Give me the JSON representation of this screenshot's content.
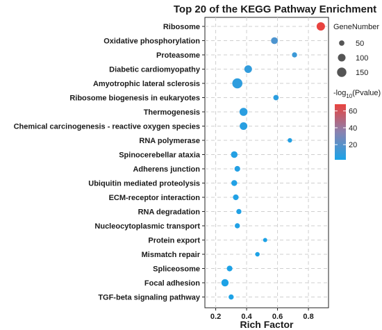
{
  "chart_data": {
    "type": "scatter",
    "title": "Top 20 of the KEGG Pathway Enrichment",
    "xlabel": "Rich Factor",
    "ylabel": "",
    "xlim": [
      0.13,
      0.93
    ],
    "xticks": [
      "0.2",
      "0.4",
      "0.6",
      "0.8"
    ],
    "xtick_values": [
      0.2,
      0.4,
      0.6,
      0.8
    ],
    "grid": true,
    "legend_placement": "right",
    "size_legend": {
      "title": "GeneNumber",
      "values": [
        50,
        100,
        150
      ],
      "labels": [
        "50",
        "100",
        "150"
      ]
    },
    "color_legend": {
      "title_prefix": "-log",
      "title_sub": "10",
      "title_suffix": "(Pvalue)",
      "ticks": [
        20,
        40,
        60
      ],
      "tick_labels": [
        "20",
        "40",
        "60"
      ],
      "range": [
        2,
        68
      ],
      "low_color": "#1aa3e8",
      "mid_color": "#8a82b0",
      "high_color": "#e8433f"
    },
    "categories": [
      "Ribosome",
      "Oxidative phosphorylation",
      "Proteasome",
      "Diabetic cardiomyopathy",
      "Amyotrophic lateral sclerosis",
      "Ribosome biogenesis in eukaryotes",
      "Thermogenesis",
      "Chemical carcinogenesis - reactive oxygen species",
      "RNA polymerase",
      "Spinocerebellar ataxia",
      "Adherens junction",
      "Ubiquitin mediated proteolysis",
      "ECM-receptor interaction",
      "RNA degradation",
      "Nucleocytoplasmic transport",
      "Protein export",
      "Mismatch repair",
      "Spliceosome",
      "Focal adhesion",
      "TGF-beta signaling pathway"
    ],
    "x": [
      0.88,
      0.58,
      0.71,
      0.41,
      0.34,
      0.59,
      0.38,
      0.38,
      0.68,
      0.32,
      0.34,
      0.32,
      0.33,
      0.35,
      0.34,
      0.52,
      0.47,
      0.29,
      0.26,
      0.3
    ],
    "gene_number": [
      120,
      80,
      45,
      100,
      175,
      50,
      110,
      100,
      35,
      75,
      55,
      60,
      55,
      45,
      45,
      30,
      35,
      55,
      90,
      45
    ],
    "neg_log10_pvalue": [
      68,
      17,
      12,
      9,
      8,
      7,
      7,
      6,
      5,
      5,
      5,
      4,
      4,
      4,
      4,
      3,
      3,
      3,
      3,
      3
    ]
  }
}
